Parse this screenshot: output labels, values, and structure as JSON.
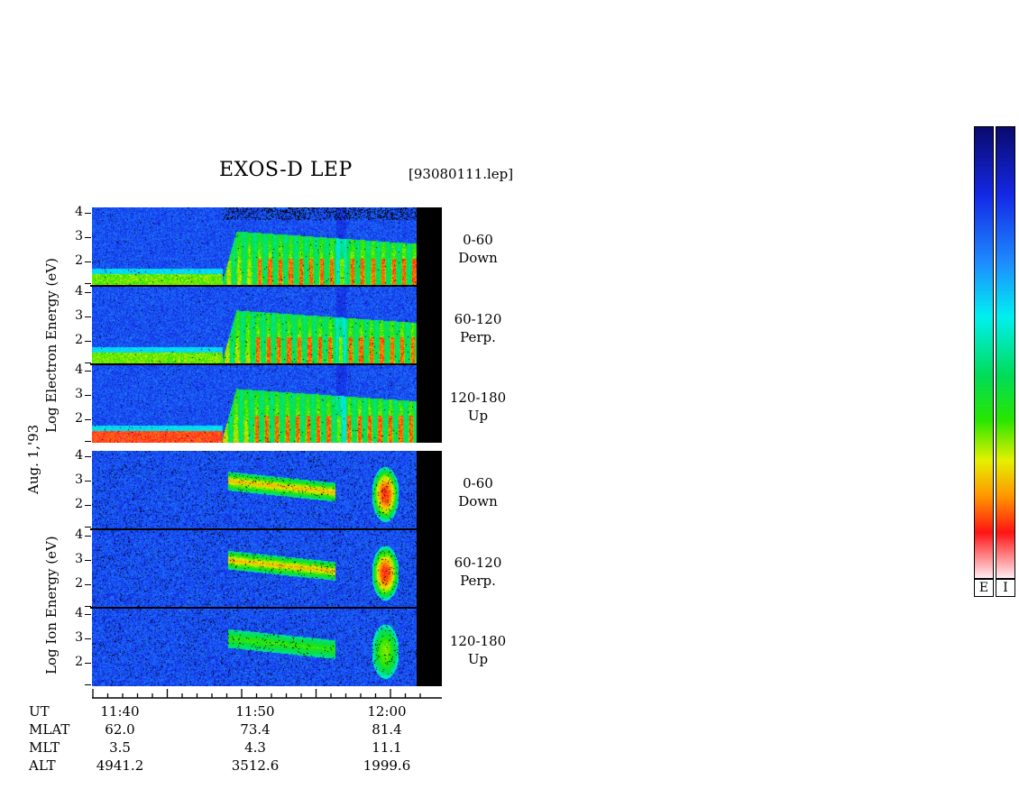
{
  "title": "EXOS-D LEP",
  "file_id": "[93080111.lep]",
  "date_label": "Aug. 1,'93",
  "electron_axis_label": "Log  Electron  Energy  (eV)",
  "ion_axis_label": "Log  Ion  Energy  (eV)",
  "y_ticks": [
    "4",
    "3",
    "2"
  ],
  "pitch_panels": [
    {
      "range": "0-60",
      "dir": "Down"
    },
    {
      "range": "60-120",
      "dir": "Perp."
    },
    {
      "range": "120-180",
      "dir": "Up"
    }
  ],
  "colorbar_labels": [
    "E",
    "I"
  ],
  "colors": {
    "background_spectrogram": "#0a2fd6",
    "electron_max": "#ff2020",
    "ion_max": "#40ff60"
  },
  "time_axis": {
    "rows": [
      {
        "label": "UT",
        "values": [
          "11:40",
          "11:50",
          "12:00"
        ]
      },
      {
        "label": "MLAT",
        "values": [
          "62.0",
          "73.4",
          "81.4"
        ]
      },
      {
        "label": "MLT",
        "values": [
          "3.5",
          "4.3",
          "11.1"
        ]
      },
      {
        "label": "ALT",
        "values": [
          "4941.2",
          "3512.6",
          "1999.6"
        ]
      }
    ]
  },
  "chart_data": {
    "type": "heatmap",
    "title": "EXOS-D LEP",
    "x_ticks": [
      "11:40",
      "11:50",
      "12:00"
    ],
    "y_ticks": [
      2,
      3,
      4
    ],
    "ylim": [
      1,
      4
    ],
    "panels": [
      {
        "species": "electron",
        "pitch": "0-60",
        "dir": "Down"
      },
      {
        "species": "electron",
        "pitch": "60-120",
        "dir": "Perp."
      },
      {
        "species": "electron",
        "pitch": "120-180",
        "dir": "Up"
      },
      {
        "species": "ion",
        "pitch": "0-60",
        "dir": "Down"
      },
      {
        "species": "ion",
        "pitch": "60-120",
        "dir": "Perp."
      },
      {
        "species": "ion",
        "pitch": "120-180",
        "dir": "Up"
      }
    ]
  }
}
